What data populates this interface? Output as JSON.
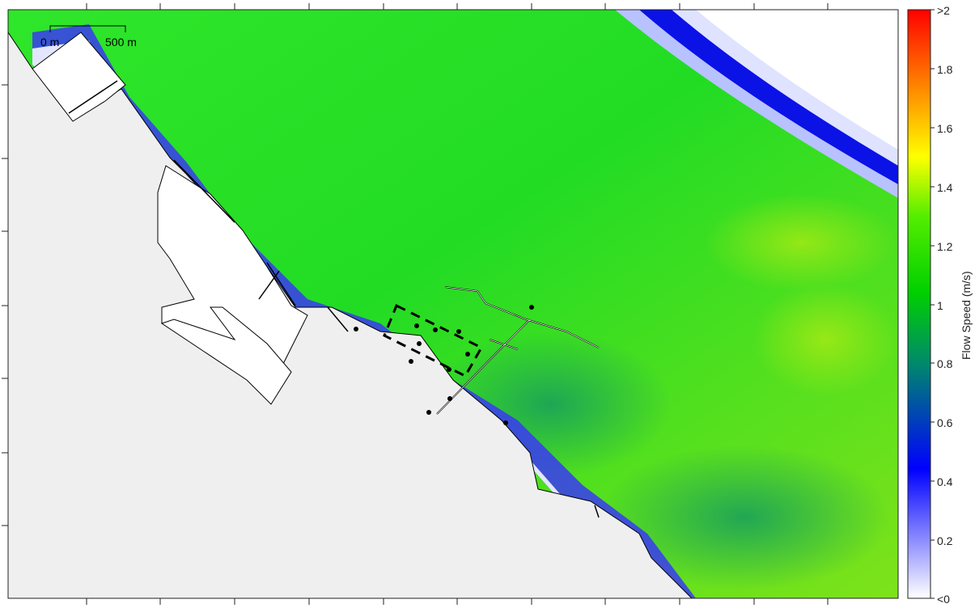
{
  "map": {
    "scale_bar": {
      "start_label": "0 m",
      "end_label": "500 m"
    },
    "land_color": "#efefef",
    "coast_line_color": "#000000",
    "markers_color": "#000000",
    "study_area_style": "dashed-rectangle"
  },
  "colorbar": {
    "title": "Flow Speed (m/s)",
    "ticks": [
      {
        "label": ">2",
        "value": 2.0
      },
      {
        "label": "1.8",
        "value": 1.8
      },
      {
        "label": "1.6",
        "value": 1.6
      },
      {
        "label": "1.4",
        "value": 1.4
      },
      {
        "label": "1.2",
        "value": 1.2
      },
      {
        "label": "1",
        "value": 1.0
      },
      {
        "label": "0.8",
        "value": 0.8
      },
      {
        "label": "0.6",
        "value": 0.6
      },
      {
        "label": "0.4",
        "value": 0.4
      },
      {
        "label": "0.2",
        "value": 0.2
      },
      {
        "label": "<0",
        "value": 0.0
      }
    ],
    "range": [
      0,
      2
    ],
    "colormap": [
      "#ffffff",
      "#0000ff",
      "#00a000",
      "#00ff00",
      "#ffff00",
      "#ff0000"
    ]
  }
}
